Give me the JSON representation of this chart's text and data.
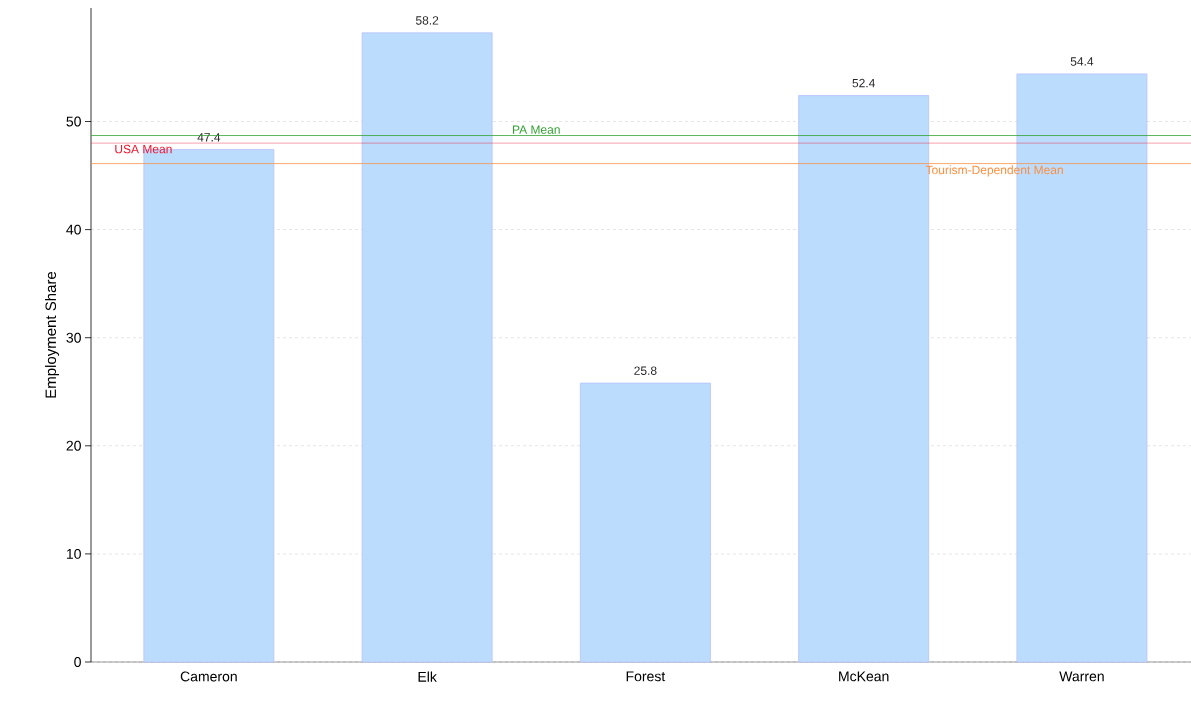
{
  "chart_data": {
    "type": "bar",
    "ylabel": "Employment Share",
    "categories": [
      "Cameron",
      "Elk",
      "Forest",
      "McKean",
      "Warren"
    ],
    "values": [
      47.4,
      58.2,
      25.8,
      52.4,
      54.4
    ],
    "color": "#bbdcfd",
    "ylim": [
      0,
      60.5
    ],
    "yticks": [
      0,
      10,
      20,
      30,
      40,
      50
    ],
    "grid": "y",
    "data_labels": true,
    "ref_lines": [
      {
        "axis": "y",
        "value": 48.7,
        "label": "PA Mean",
        "color": "#2ca02c"
      },
      {
        "axis": "y",
        "value": 48.0,
        "label": "USA Mean",
        "color": "#f0142d"
      },
      {
        "axis": "y",
        "value": 46.1,
        "label": "Tourism-Dependent Mean",
        "color": "#fd8d3c"
      }
    ]
  }
}
